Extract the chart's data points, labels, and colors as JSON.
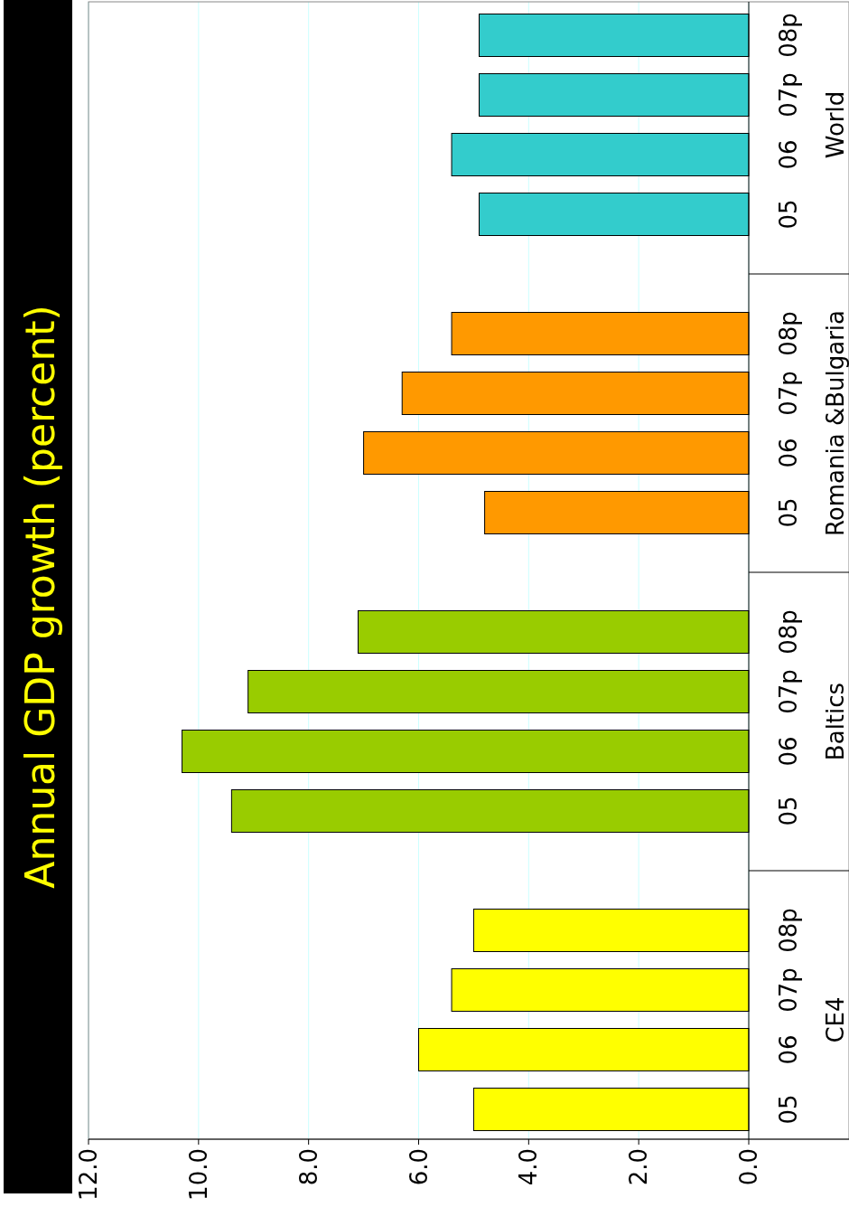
{
  "chart_data": {
    "type": "bar",
    "orientation": "horizontal",
    "title": "Annual GDP growth (percent)",
    "categories": [
      "08p",
      "07p",
      "06",
      "05",
      "08p",
      "07p",
      "06",
      "05",
      "08p",
      "07p",
      "06",
      "05",
      "08p",
      "07p",
      "06",
      "05"
    ],
    "series": [
      {
        "name": "World",
        "color": "#33cccc",
        "values": [
          4.9,
          4.9,
          5.4,
          4.9,
          null,
          null,
          null,
          null,
          null,
          null,
          null,
          null,
          null,
          null,
          null,
          null
        ]
      },
      {
        "name": "Romania &Bulgaria",
        "color": "#ff9900",
        "values": [
          null,
          null,
          null,
          null,
          5.4,
          6.3,
          7.0,
          4.8,
          null,
          null,
          null,
          null,
          null,
          null,
          null,
          null
        ]
      },
      {
        "name": "Baltics",
        "color": "#99cc00",
        "values": [
          null,
          null,
          null,
          null,
          null,
          null,
          null,
          null,
          7.1,
          9.1,
          10.3,
          9.4,
          null,
          null,
          null,
          null
        ]
      },
      {
        "name": "CE4",
        "color": "#ffff00",
        "values": [
          null,
          null,
          null,
          null,
          null,
          null,
          null,
          null,
          null,
          null,
          null,
          null,
          5.0,
          5.4,
          6.0,
          5.0
        ]
      }
    ],
    "xlim": [
      12,
      0
    ],
    "xticks": [
      {
        "value": 12,
        "label": "12.0"
      },
      {
        "value": 10,
        "label": "10.0"
      },
      {
        "value": 8,
        "label": "8.0"
      },
      {
        "value": 6,
        "label": "6.0"
      },
      {
        "value": 4,
        "label": "4.0"
      },
      {
        "value": 2,
        "label": "2.0"
      },
      {
        "value": 0,
        "label": "0.0"
      }
    ],
    "grid": "x"
  }
}
